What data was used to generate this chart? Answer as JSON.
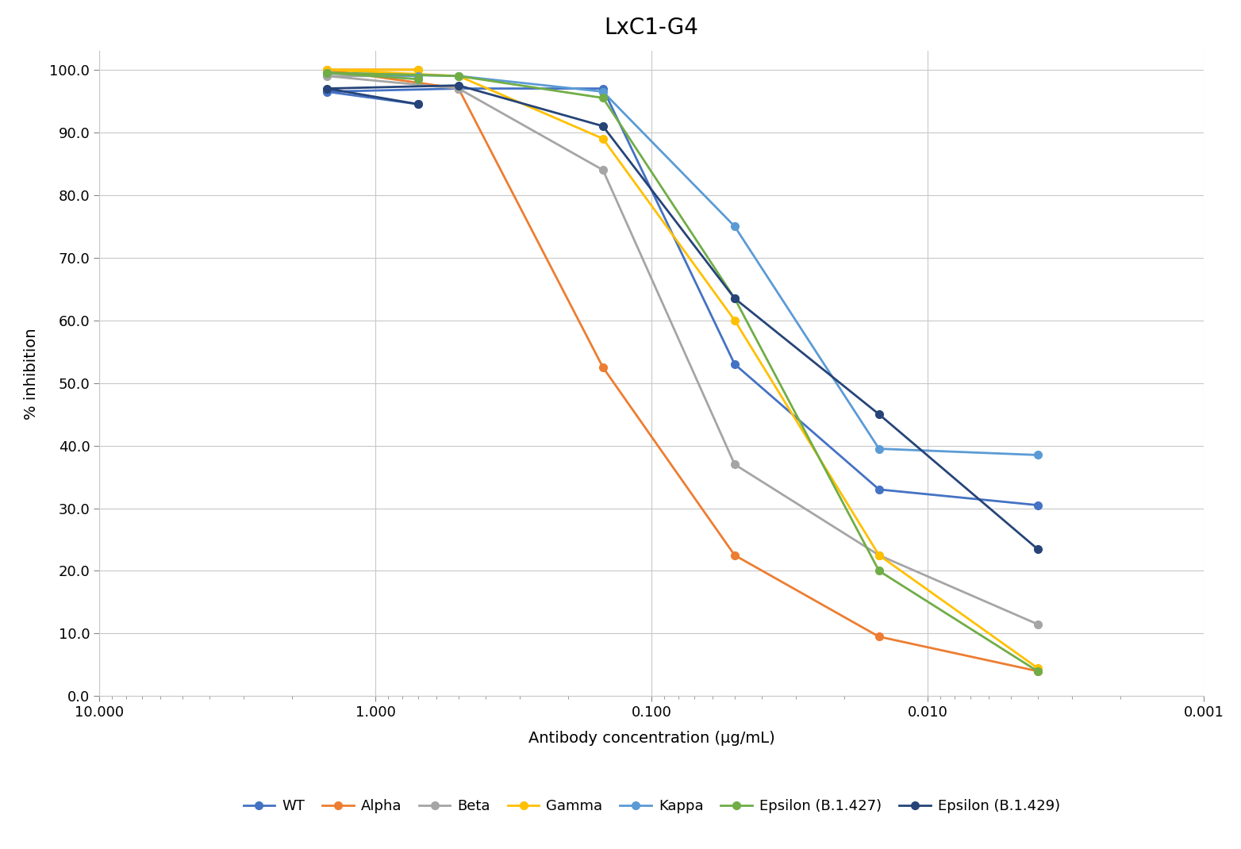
{
  "title": "LxC1-G4",
  "xlabel": "Antibody concentration (μg/mL)",
  "ylabel": "% inhibition",
  "xlim_left": 10.0,
  "xlim_right": 0.001,
  "ylim": [
    0.0,
    103.0
  ],
  "yticks": [
    0.0,
    10.0,
    20.0,
    30.0,
    40.0,
    50.0,
    60.0,
    70.0,
    80.0,
    90.0,
    100.0
  ],
  "xticks": [
    10.0,
    1.0,
    0.1,
    0.01,
    0.001
  ],
  "series": [
    {
      "label": "WT",
      "color": "#4472C4",
      "x": [
        0.7,
        1.5,
        0.5,
        0.15,
        0.05,
        0.015,
        0.004
      ],
      "y": [
        94.5,
        96.5,
        97.0,
        97.0,
        53.0,
        33.0,
        30.5
      ]
    },
    {
      "label": "Alpha",
      "color": "#ED7D31",
      "x": [
        0.7,
        1.5,
        0.5,
        0.15,
        0.05,
        0.015,
        0.004
      ],
      "y": [
        100.0,
        100.0,
        97.0,
        52.5,
        22.5,
        9.5,
        4.0
      ]
    },
    {
      "label": "Beta",
      "color": "#A5A5A5",
      "x": [
        0.7,
        1.5,
        0.5,
        0.15,
        0.05,
        0.015,
        0.004
      ],
      "y": [
        99.0,
        99.0,
        97.0,
        84.0,
        37.0,
        22.5,
        11.5
      ]
    },
    {
      "label": "Gamma",
      "color": "#FFC000",
      "x": [
        0.7,
        1.5,
        0.5,
        0.15,
        0.05,
        0.015,
        0.004
      ],
      "y": [
        100.0,
        100.0,
        99.0,
        89.0,
        60.0,
        22.5,
        4.5
      ]
    },
    {
      "label": "Kappa",
      "color": "#5B9BD5",
      "x": [
        0.7,
        1.5,
        0.5,
        0.15,
        0.05,
        0.015,
        0.004
      ],
      "y": [
        99.0,
        99.5,
        99.0,
        96.5,
        75.0,
        39.5,
        38.5
      ]
    },
    {
      "label": "Epsilon (B.1.427)",
      "color": "#70AD47",
      "x": [
        0.7,
        1.5,
        0.5,
        0.15,
        0.05,
        0.015,
        0.004
      ],
      "y": [
        98.5,
        99.5,
        99.0,
        95.5,
        63.5,
        20.0,
        4.0
      ]
    },
    {
      "label": "Epsilon (B.1.429)",
      "color": "#264478",
      "x": [
        0.7,
        1.5,
        0.5,
        0.15,
        0.05,
        0.015,
        0.004
      ],
      "y": [
        94.5,
        97.0,
        97.5,
        91.0,
        63.5,
        45.0,
        23.5
      ]
    }
  ],
  "background_color": "#FFFFFF",
  "grid_color": "#C8C8C8",
  "title_fontsize": 20,
  "label_fontsize": 14,
  "tick_fontsize": 13,
  "legend_fontsize": 13
}
